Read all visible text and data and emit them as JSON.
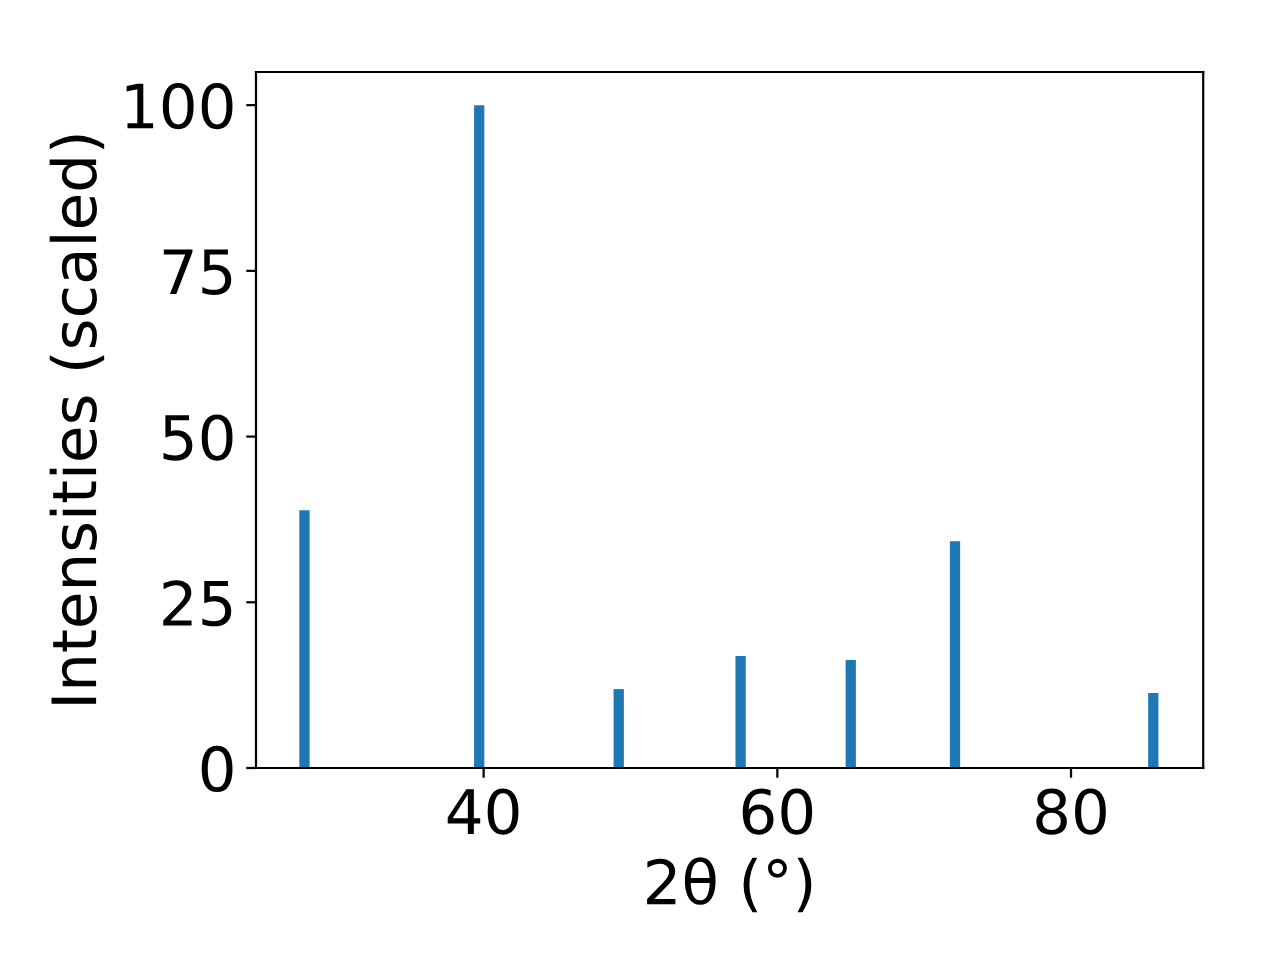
{
  "chart_data": {
    "type": "bar",
    "xlabel": "2θ (°)",
    "ylabel": "Intensities (scaled)",
    "x": [
      27.8,
      39.7,
      49.2,
      57.5,
      65.0,
      72.1,
      85.6
    ],
    "values": [
      38.9,
      100,
      11.9,
      16.9,
      16.3,
      34.2,
      11.3
    ],
    "color": "#1f77b4",
    "xlim": [
      24.5,
      89.0
    ],
    "xticks": [
      40,
      60,
      80
    ],
    "ylim": [
      0,
      105
    ],
    "yticks": [
      0,
      25,
      50,
      75,
      100
    ],
    "grid": false
  }
}
